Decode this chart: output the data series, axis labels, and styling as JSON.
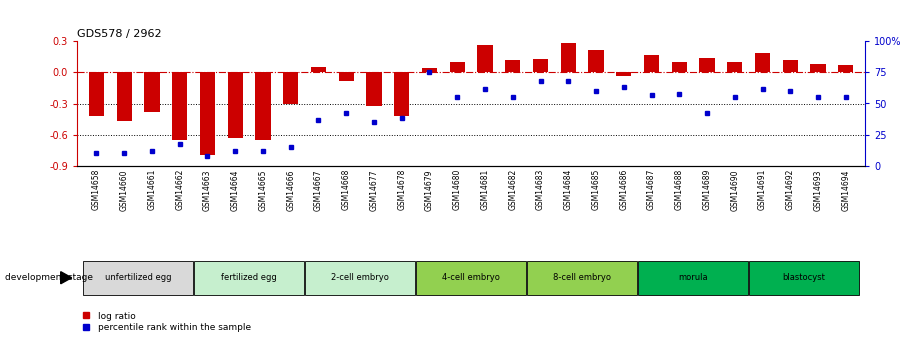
{
  "title": "GDS578 / 2962",
  "samples": [
    "GSM14658",
    "GSM14660",
    "GSM14661",
    "GSM14662",
    "GSM14663",
    "GSM14664",
    "GSM14665",
    "GSM14666",
    "GSM14667",
    "GSM14668",
    "GSM14677",
    "GSM14678",
    "GSM14679",
    "GSM14680",
    "GSM14681",
    "GSM14682",
    "GSM14683",
    "GSM14684",
    "GSM14685",
    "GSM14686",
    "GSM14687",
    "GSM14688",
    "GSM14689",
    "GSM14690",
    "GSM14691",
    "GSM14692",
    "GSM14693",
    "GSM14694"
  ],
  "log_ratio": [
    -0.42,
    -0.47,
    -0.38,
    -0.65,
    -0.8,
    -0.63,
    -0.65,
    -0.3,
    0.05,
    -0.08,
    -0.32,
    -0.42,
    0.04,
    0.1,
    0.27,
    0.12,
    0.13,
    0.28,
    0.22,
    -0.03,
    0.17,
    0.1,
    0.14,
    0.1,
    0.19,
    0.12,
    0.08,
    0.07
  ],
  "percentile_rank": [
    10,
    10,
    12,
    17,
    8,
    12,
    12,
    15,
    37,
    42,
    35,
    38,
    75,
    55,
    62,
    55,
    68,
    68,
    60,
    63,
    57,
    58,
    42,
    55,
    62,
    60,
    55,
    55
  ],
  "stages": [
    {
      "label": "unfertilized egg",
      "start": 0,
      "end": 4,
      "color": "#d9d9d9"
    },
    {
      "label": "fertilized egg",
      "start": 4,
      "end": 8,
      "color": "#c6efce"
    },
    {
      "label": "2-cell embryo",
      "start": 8,
      "end": 12,
      "color": "#c6efce"
    },
    {
      "label": "4-cell embryo",
      "start": 12,
      "end": 16,
      "color": "#92d050"
    },
    {
      "label": "8-cell embryo",
      "start": 16,
      "end": 20,
      "color": "#92d050"
    },
    {
      "label": "morula",
      "start": 20,
      "end": 24,
      "color": "#00b050"
    },
    {
      "label": "blastocyst",
      "start": 24,
      "end": 28,
      "color": "#00b050"
    }
  ],
  "bar_color": "#cc0000",
  "dot_color": "#0000cc",
  "ylim_left": [
    -0.9,
    0.3
  ],
  "ylim_right": [
    0,
    100
  ],
  "yticks_left": [
    -0.9,
    -0.6,
    -0.3,
    0.0,
    0.3
  ],
  "yticks_right": [
    0,
    25,
    50,
    75,
    100
  ],
  "hline_y": 0.0,
  "dotted_lines": [
    -0.3,
    -0.6
  ],
  "background_color": "#ffffff"
}
